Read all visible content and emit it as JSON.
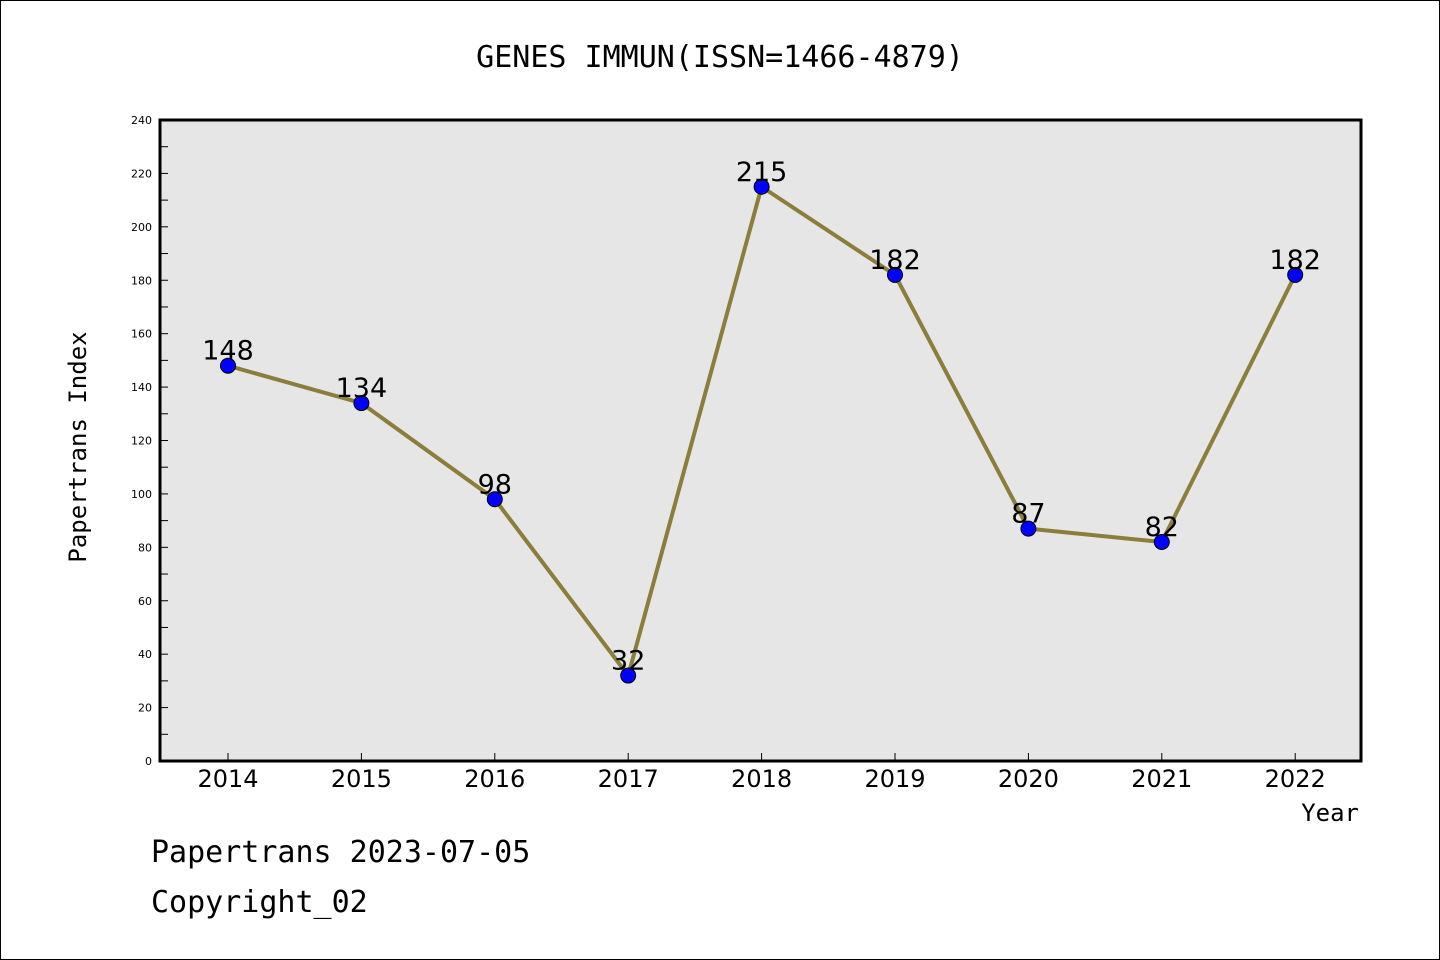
{
  "chart_data": {
    "type": "line",
    "title": "GENES IMMUN(ISSN=1466-4879)",
    "xlabel": "Year",
    "ylabel": "Papertrans Index",
    "categories": [
      "2014",
      "2015",
      "2016",
      "2017",
      "2018",
      "2019",
      "2020",
      "2021",
      "2022"
    ],
    "series": [
      {
        "values": [
          148,
          134,
          98,
          32,
          215,
          182,
          87,
          82,
          182
        ]
      }
    ],
    "ylim": [
      0,
      240
    ],
    "yticks": [
      "0",
      "20",
      "40",
      "60",
      "80",
      "100",
      "120",
      "140",
      "160",
      "180",
      "200",
      "220",
      "240"
    ],
    "grid": false,
    "colors": {
      "line": "#8b7d3a",
      "marker": "#0000ff",
      "plot_bg": "#e6e6e6"
    }
  },
  "footer": {
    "date_text": "Papertrans 2023-07-05",
    "copyright_text": "Copyright_02"
  }
}
